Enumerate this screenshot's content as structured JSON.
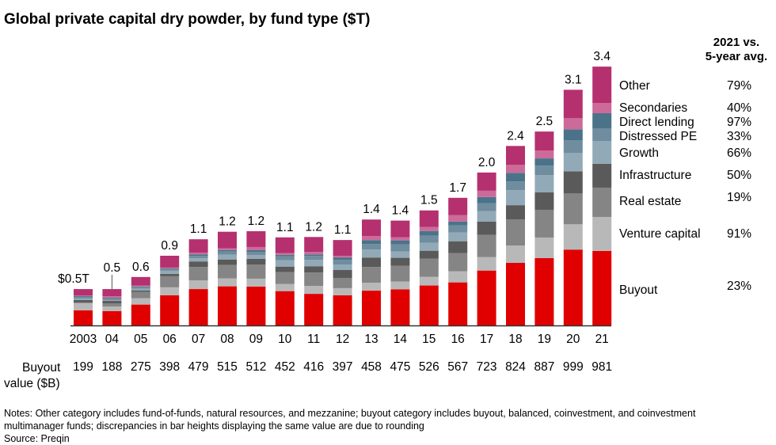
{
  "header": {
    "title": "Global private capital dry powder, by fund type ($T)",
    "legend_heading_line1": "2021 vs.",
    "legend_heading_line2": "5-year avg."
  },
  "buyout_row": {
    "label_line1": "Buyout",
    "label_line2": "value ($B)"
  },
  "notes": {
    "line1": "Notes: Other category includes fund-of-funds, natural resources, and mezzanine; buyout category includes buyout, balanced, coinvestment, and coinvestment",
    "line2": "multimanager funds; discrepancies in bar heights displaying the same value are due to rounding",
    "source": "Source: Preqin"
  },
  "chart_data": {
    "type": "bar",
    "stacked": true,
    "title": "Global private capital dry powder, by fund type ($T)",
    "xlabel": "",
    "ylabel": "",
    "units": "$B (segments, estimated); totals in $T",
    "ylim_trillions": [
      0,
      3.4
    ],
    "grid": false,
    "legend_placement": "right",
    "categories": [
      "2003",
      "04",
      "05",
      "06",
      "07",
      "08",
      "09",
      "10",
      "11",
      "12",
      "13",
      "14",
      "15",
      "16",
      "17",
      "18",
      "19",
      "20",
      "21"
    ],
    "total_labels": [
      "$0.5T",
      "0.5",
      "0.6",
      "0.9",
      "1.1",
      "1.2",
      "1.2",
      "1.1",
      "1.2",
      "1.1",
      "1.4",
      "1.4",
      "1.5",
      "1.7",
      "2.0",
      "2.4",
      "2.5",
      "3.1",
      "3.4"
    ],
    "totals_trillions": [
      0.5,
      0.5,
      0.6,
      0.9,
      1.1,
      1.2,
      1.2,
      1.1,
      1.2,
      1.1,
      1.4,
      1.4,
      1.5,
      1.7,
      2.0,
      2.4,
      2.5,
      3.1,
      3.4
    ],
    "buyout_values_label": [
      199,
      188,
      275,
      398,
      479,
      515,
      512,
      452,
      416,
      397,
      458,
      475,
      526,
      567,
      723,
      824,
      887,
      999,
      981
    ],
    "series": [
      {
        "name": "Buyout",
        "color": "#E00000",
        "change_vs_5yr_avg": "23%",
        "values": [
          199,
          188,
          275,
          398,
          479,
          515,
          512,
          452,
          416,
          397,
          458,
          475,
          526,
          567,
          723,
          824,
          887,
          999,
          981
        ]
      },
      {
        "name": "Venture capital",
        "color": "#B8B8B8",
        "change_vs_5yr_avg": "91%",
        "values": [
          94,
          62,
          83,
          104,
          114,
          104,
          104,
          94,
          104,
          94,
          104,
          104,
          114,
          146,
          177,
          229,
          271,
          333,
          448
        ]
      },
      {
        "name": "Real estate",
        "color": "#858585",
        "change_vs_5yr_avg": "19%",
        "values": [
          10,
          42,
          83,
          146,
          177,
          177,
          187,
          156,
          177,
          135,
          208,
          208,
          240,
          240,
          292,
          344,
          365,
          406,
          386
        ]
      },
      {
        "name": "Infrastructure",
        "color": "#5A5A5A",
        "change_vs_5yr_avg": "50%",
        "values": [
          31,
          31,
          21,
          31,
          73,
          73,
          73,
          73,
          83,
          104,
          125,
          104,
          104,
          156,
          177,
          187,
          229,
          292,
          313
        ]
      },
      {
        "name": "Growth",
        "color": "#92AAB7",
        "change_vs_5yr_avg": "66%",
        "values": [
          21,
          10,
          21,
          42,
          42,
          62,
          52,
          83,
          83,
          73,
          104,
          83,
          104,
          114,
          135,
          198,
          229,
          240,
          302
        ]
      },
      {
        "name": "Distressed PE",
        "color": "#6F8D9E",
        "change_vs_5yr_avg": "33%",
        "values": [
          21,
          21,
          21,
          21,
          31,
          42,
          42,
          52,
          52,
          62,
          73,
          94,
          94,
          94,
          104,
          114,
          125,
          167,
          167
        ]
      },
      {
        "name": "Direct lending",
        "color": "#4A7389",
        "change_vs_5yr_avg": "97%",
        "values": [
          10,
          10,
          10,
          10,
          21,
          21,
          21,
          21,
          21,
          31,
          52,
          52,
          62,
          52,
          83,
          114,
          94,
          146,
          198
        ]
      },
      {
        "name": "Secondaries",
        "color": "#CC6A9A",
        "change_vs_5yr_avg": "40%",
        "values": [
          10,
          21,
          10,
          10,
          21,
          21,
          42,
          21,
          31,
          21,
          52,
          42,
          52,
          83,
          83,
          104,
          104,
          146,
          135
        ]
      },
      {
        "name": "Other",
        "color": "#B5306E",
        "change_vs_5yr_avg": "79%",
        "values": [
          83,
          94,
          114,
          156,
          177,
          219,
          208,
          208,
          198,
          208,
          219,
          219,
          219,
          229,
          240,
          250,
          250,
          375,
          479
        ]
      }
    ],
    "annotations": [
      "Leader line connects label 0.5 to the 04 bar"
    ]
  }
}
